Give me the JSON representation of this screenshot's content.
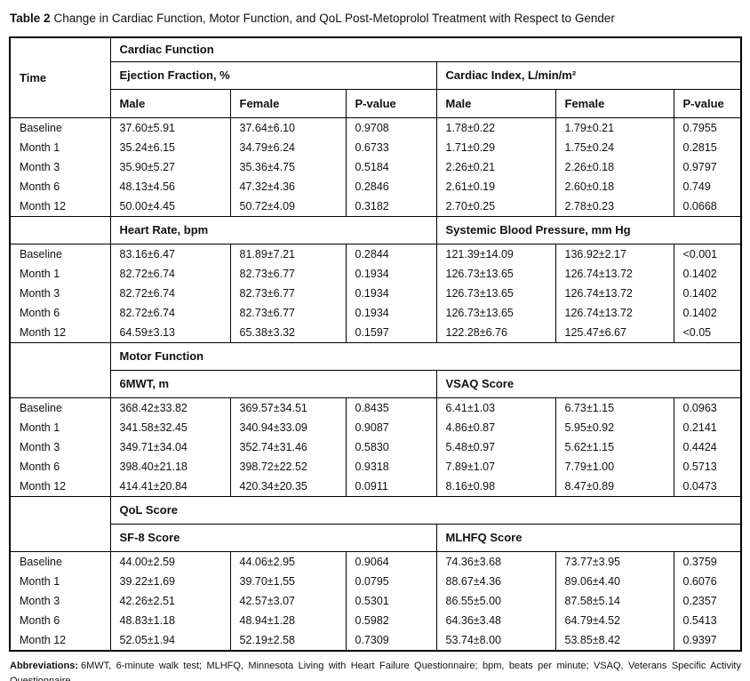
{
  "title": {
    "label": "Table 2",
    "text": "Change in Cardiac Function, Motor Function, and QoL Post-Metoprolol Treatment with Respect to Gender"
  },
  "table": {
    "corner_header": "Time",
    "gender_headers": [
      "Male",
      "Female",
      "P-value"
    ],
    "row_labels": [
      "Baseline",
      "Month 1",
      "Month 3",
      "Month 6",
      "Month 12"
    ],
    "sections": [
      {
        "title": "Cardiac Function",
        "panels": [
          {
            "left_header": "Ejection Fraction, %",
            "right_header": "Cardiac Index, L/min/m²",
            "rows": [
              {
                "time": "Baseline",
                "left": [
                  "37.60±5.91",
                  "37.64±6.10",
                  "0.9708"
                ],
                "right": [
                  "1.78±0.22",
                  "1.79±0.21",
                  "0.7955"
                ]
              },
              {
                "time": "Month 1",
                "left": [
                  "35.24±6.15",
                  "34.79±6.24",
                  "0.6733"
                ],
                "right": [
                  "1.71±0.29",
                  "1.75±0.24",
                  "0.2815"
                ]
              },
              {
                "time": "Month 3",
                "left": [
                  "35.90±5.27",
                  "35.36±4.75",
                  "0.5184"
                ],
                "right": [
                  "2.26±0.21",
                  "2.26±0.18",
                  "0.9797"
                ]
              },
              {
                "time": "Month 6",
                "left": [
                  "48.13±4.56",
                  "47.32±4.36",
                  "0.2846"
                ],
                "right": [
                  "2.61±0.19",
                  "2.60±0.18",
                  "0.749"
                ]
              },
              {
                "time": "Month 12",
                "left": [
                  "50.00±4.45",
                  "50.72±4.09",
                  "0.3182"
                ],
                "right": [
                  "2.70±0.25",
                  "2.78±0.23",
                  "0.0668"
                ]
              }
            ]
          },
          {
            "left_header": "Heart Rate, bpm",
            "right_header": "Systemic Blood Pressure, mm Hg",
            "rows": [
              {
                "time": "Baseline",
                "left": [
                  "83.16±6.47",
                  "81.89±7.21",
                  "0.2844"
                ],
                "right": [
                  "121.39±14.09",
                  "136.92±2.17",
                  "<0.001"
                ]
              },
              {
                "time": "Month 1",
                "left": [
                  "82.72±6.74",
                  "82.73±6.77",
                  "0.1934"
                ],
                "right": [
                  "126.73±13.65",
                  "126.74±13.72",
                  "0.1402"
                ]
              },
              {
                "time": "Month 3",
                "left": [
                  "82.72±6.74",
                  "82.73±6.77",
                  "0.1934"
                ],
                "right": [
                  "126.73±13.65",
                  "126.74±13.72",
                  "0.1402"
                ]
              },
              {
                "time": "Month 6",
                "left": [
                  "82.72±6.74",
                  "82.73±6.77",
                  "0.1934"
                ],
                "right": [
                  "126.73±13.65",
                  "126.74±13.72",
                  "0.1402"
                ]
              },
              {
                "time": "Month 12",
                "left": [
                  "64.59±3.13",
                  "65.38±3.32",
                  "0.1597"
                ],
                "right": [
                  "122.28±6.76",
                  "125.47±6.67",
                  "<0.05"
                ]
              }
            ]
          }
        ]
      },
      {
        "title": "Motor Function",
        "panels": [
          {
            "left_header": "6MWT, m",
            "right_header": "VSAQ Score",
            "rows": [
              {
                "time": "Baseline",
                "left": [
                  "368.42±33.82",
                  "369.57±34.51",
                  "0.8435"
                ],
                "right": [
                  "6.41±1.03",
                  "6.73±1.15",
                  "0.0963"
                ]
              },
              {
                "time": "Month 1",
                "left": [
                  "341.58±32.45",
                  "340.94±33.09",
                  "0.9087"
                ],
                "right": [
                  "4.86±0.87",
                  "5.95±0.92",
                  "0.2141"
                ]
              },
              {
                "time": "Month 3",
                "left": [
                  "349.71±34.04",
                  "352.74±31.46",
                  "0.5830"
                ],
                "right": [
                  "5.48±0.97",
                  "5.62±1.15",
                  "0.4424"
                ]
              },
              {
                "time": "Month 6",
                "left": [
                  "398.40±21.18",
                  "398.72±22.52",
                  "0.9318"
                ],
                "right": [
                  "7.89±1.07",
                  "7.79±1.00",
                  "0.5713"
                ]
              },
              {
                "time": "Month 12",
                "left": [
                  "414.41±20.84",
                  "420.34±20.35",
                  "0.0911"
                ],
                "right": [
                  "8.16±0.98",
                  "8.47±0.89",
                  "0.0473"
                ]
              }
            ]
          }
        ]
      },
      {
        "title": "QoL Score",
        "panels": [
          {
            "left_header": "SF-8 Score",
            "right_header": "MLHFQ Score",
            "rows": [
              {
                "time": "Baseline",
                "left": [
                  "44.00±2.59",
                  "44.06±2.95",
                  "0.9064"
                ],
                "right": [
                  "74.36±3.68",
                  "73.77±3.95",
                  "0.3759"
                ]
              },
              {
                "time": "Month 1",
                "left": [
                  "39.22±1.69",
                  "39.70±1.55",
                  "0.0795"
                ],
                "right": [
                  "88.67±4.36",
                  "89.06±4.40",
                  "0.6076"
                ]
              },
              {
                "time": "Month 3",
                "left": [
                  "42.26±2.51",
                  "42.57±3.07",
                  "0.5301"
                ],
                "right": [
                  "86.55±5.00",
                  "87.58±5.14",
                  "0.2357"
                ]
              },
              {
                "time": "Month 6",
                "left": [
                  "48.83±1.18",
                  "48.94±1.28",
                  "0.5982"
                ],
                "right": [
                  "64.36±3.48",
                  "64.79±4.52",
                  "0.5413"
                ]
              },
              {
                "time": "Month 12",
                "left": [
                  "52.05±1.94",
                  "52.19±2.58",
                  "0.7309"
                ],
                "right": [
                  "53.74±8.00",
                  "53.85±8.42",
                  "0.9397"
                ]
              }
            ]
          }
        ]
      }
    ]
  },
  "footnote": {
    "label": "Abbreviations:",
    "text": "6MWT, 6-minute walk test; MLHFQ, Minnesota Living with Heart Failure Questionnaire; bpm, beats per minute; VSAQ, Veterans Specific Activity Questionnaire."
  }
}
